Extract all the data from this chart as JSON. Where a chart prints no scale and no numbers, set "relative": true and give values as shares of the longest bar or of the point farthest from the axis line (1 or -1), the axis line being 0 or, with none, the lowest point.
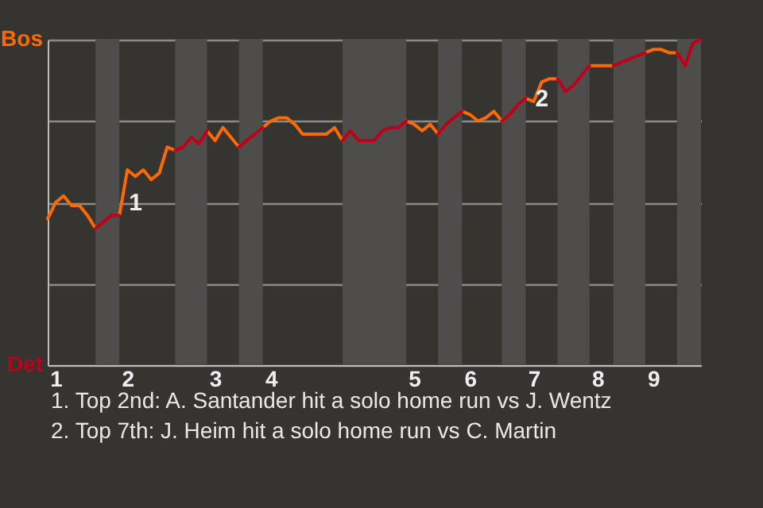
{
  "chart_data": {
    "type": "line",
    "relative": true,
    "categories": [
      null,
      "1",
      null,
      null,
      null,
      null,
      null,
      null,
      null,
      null,
      "2",
      null,
      null,
      null,
      null,
      null,
      null,
      null,
      null,
      null,
      null,
      "3",
      null,
      null,
      null,
      null,
      null,
      null,
      "4",
      null,
      null,
      null,
      null,
      null,
      null,
      null,
      null,
      null,
      null,
      null,
      null,
      null,
      null,
      null,
      null,
      null,
      "5",
      null,
      null,
      null,
      null,
      null,
      null,
      "6",
      null,
      null,
      null,
      null,
      null,
      null,
      null,
      "7",
      null,
      null,
      null,
      null,
      null,
      null,
      null,
      "8",
      null,
      null,
      null,
      null,
      null,
      null,
      "9",
      null,
      null,
      null,
      null,
      null,
      null
    ],
    "series": [
      {
        "color": "#ff6a00",
        "values": [
          0.45,
          0.5,
          0.52,
          0.49,
          0.49,
          0.46,
          0.42,
          null,
          null,
          0.46,
          0.6,
          0.58,
          0.6,
          0.57,
          0.59,
          0.67,
          0.66,
          null,
          null,
          null,
          0.72,
          0.69,
          0.73,
          0.7,
          0.67,
          null,
          null,
          0.73,
          0.75,
          0.76,
          0.76,
          0.74,
          0.71,
          0.71,
          0.71,
          0.71,
          0.73,
          0.69,
          null,
          null,
          null,
          null,
          null,
          null,
          null,
          0.75,
          0.74,
          0.72,
          0.74,
          0.71,
          null,
          null,
          0.78,
          0.77,
          0.75,
          0.76,
          0.78,
          0.75,
          null,
          null,
          0.82,
          0.81,
          0.87,
          0.88,
          0.88,
          null,
          null,
          null,
          0.92,
          0.92,
          0.92,
          0.92,
          null,
          null,
          null,
          0.96,
          0.97,
          0.97,
          0.96,
          0.96,
          null,
          null,
          null
        ]
      },
      {
        "color": "#c0001a",
        "values": [
          null,
          null,
          null,
          null,
          null,
          null,
          0.42,
          0.44,
          0.46,
          0.46,
          null,
          null,
          null,
          null,
          null,
          null,
          0.66,
          0.67,
          0.7,
          0.68,
          0.72,
          null,
          null,
          null,
          0.67,
          0.69,
          0.71,
          0.73,
          null,
          null,
          null,
          null,
          null,
          null,
          null,
          null,
          null,
          0.69,
          0.72,
          0.69,
          0.69,
          0.69,
          0.72,
          0.73,
          0.73,
          0.75,
          null,
          null,
          null,
          0.71,
          0.74,
          0.76,
          0.78,
          null,
          null,
          null,
          null,
          0.75,
          0.77,
          0.8,
          0.82,
          null,
          null,
          null,
          0.88,
          0.84,
          0.86,
          0.89,
          0.92,
          null,
          null,
          0.92,
          0.93,
          0.94,
          0.95,
          0.96,
          null,
          null,
          null,
          0.96,
          0.92,
          0.99,
          1
        ]
      }
    ],
    "grid": "y",
    "annotations": [
      "Bos",
      "Det",
      {
        "text": "1",
        "x": "2",
        "y": 0.5
      },
      {
        "text": "2",
        "x": "7",
        "y": 0.82
      },
      "1. Top 2nd: A. Santander hit a solo home run vs J. Wentz",
      "2. Top 7th: J. Heim hit a solo home run vs C. Martin"
    ]
  }
}
